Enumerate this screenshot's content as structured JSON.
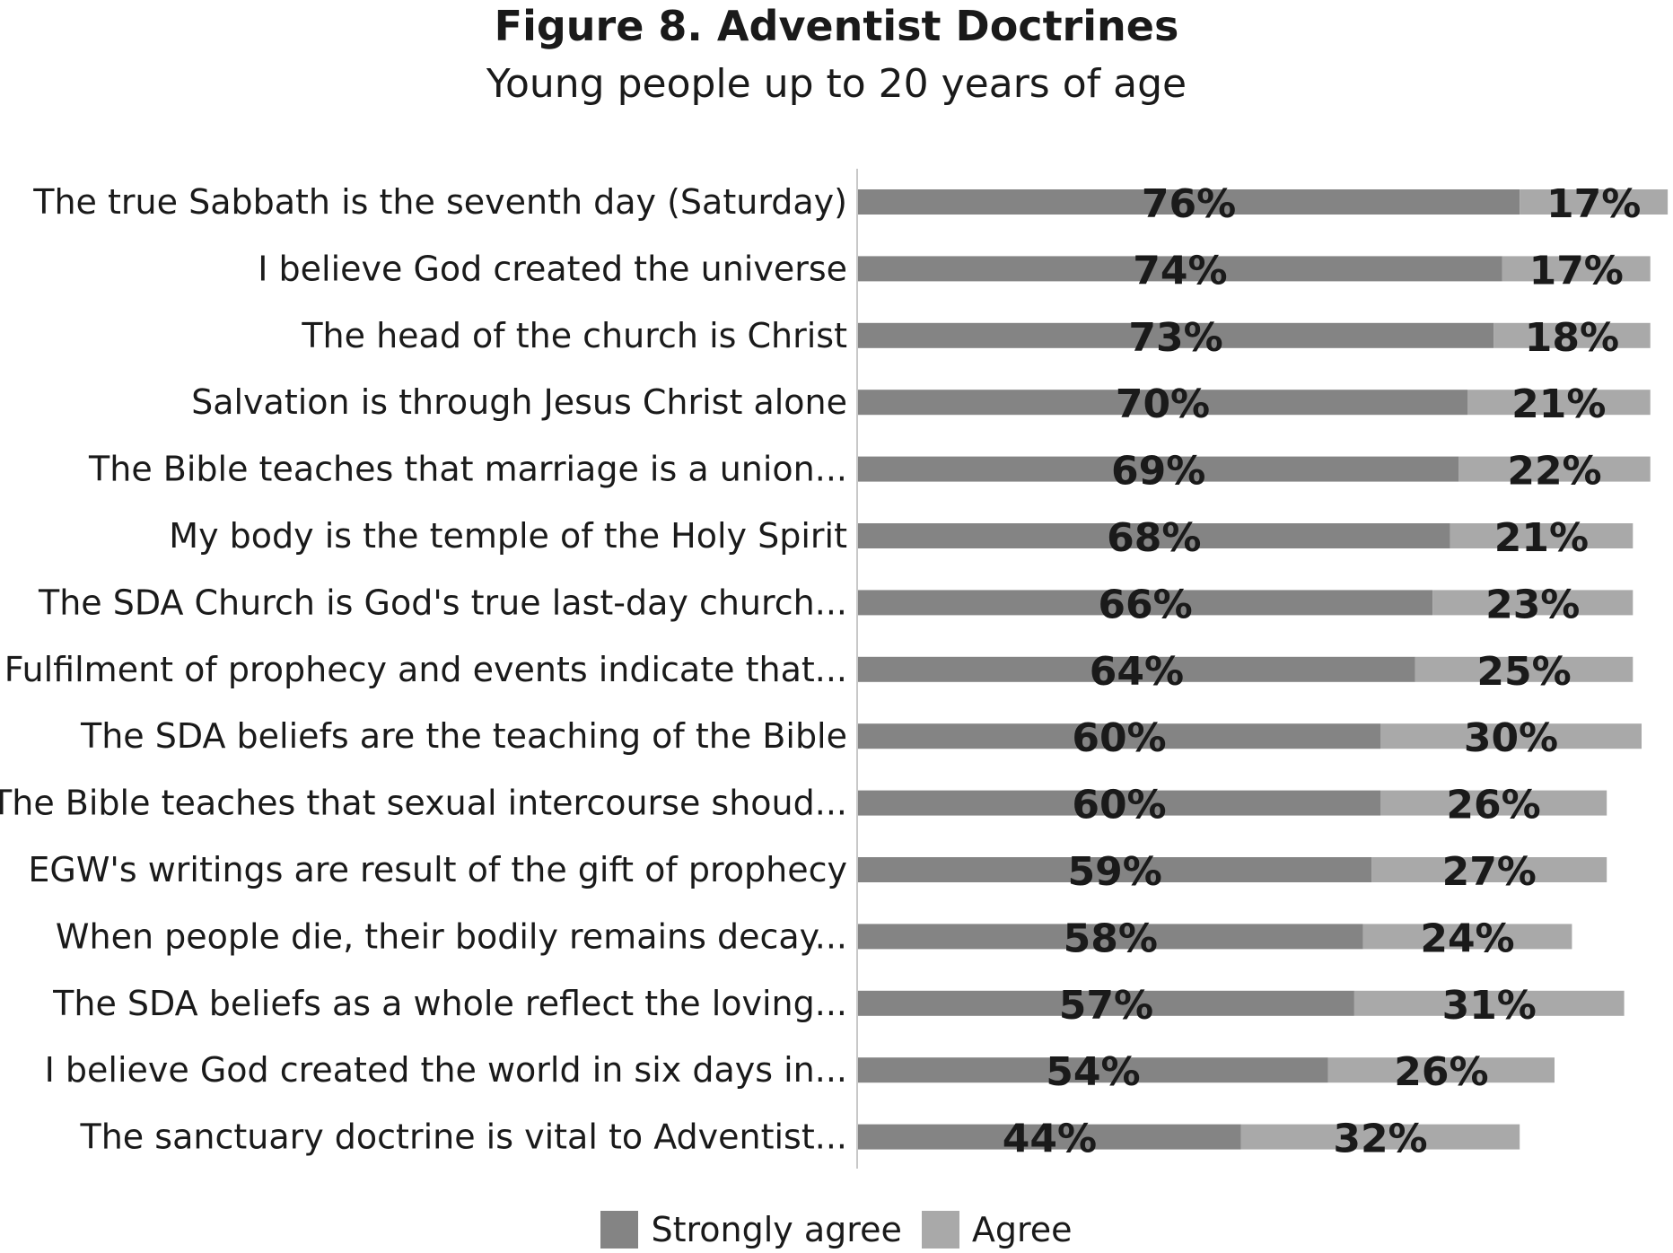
{
  "chart_data": {
    "type": "bar",
    "orientation": "horizontal",
    "stacked": true,
    "title": "Figure 8. Adventist Doctrines",
    "subtitle": "Young people up to 20 years of age",
    "categories": [
      "The true Sabbath is the seventh day (Saturday)",
      "I believe God created the universe",
      "The head of the church is Christ",
      "Salvation is through Jesus Christ alone",
      "The Bible teaches that marriage is a union...",
      "My body is the temple of the Holy Spirit",
      "The SDA Church is God's true last-day church...",
      "Fulfilment of prophecy and events indicate that...",
      "The SDA beliefs are the teaching of the Bible",
      "The Bible teaches that sexual intercourse shoud...",
      "EGW's writings are result of the gift of prophecy",
      "When people die, their bodily remains decay...",
      "The SDA beliefs  as a whole reflect the loving...",
      "I believe God created the world in six days in...",
      "The sanctuary doctrine is vital to Adventist..."
    ],
    "series": [
      {
        "name": "Strongly agree",
        "color": "#848484",
        "values": [
          76,
          74,
          73,
          70,
          69,
          68,
          66,
          64,
          60,
          60,
          59,
          58,
          57,
          54,
          44
        ],
        "labels": [
          "76%",
          "74%",
          "73%",
          "70%",
          "69%",
          "68%",
          "66%",
          "64%",
          "60%",
          "60%",
          "59%",
          "58%",
          "57%",
          "54%",
          "44%"
        ]
      },
      {
        "name": "Agree",
        "color": "#a9a9a9",
        "values": [
          17,
          17,
          18,
          21,
          22,
          21,
          23,
          25,
          30,
          26,
          27,
          24,
          31,
          26,
          32
        ],
        "labels": [
          "17%",
          "17%",
          "18%",
          "21%",
          "22%",
          "21%",
          "23%",
          "25%",
          "30%",
          "26%",
          "27%",
          "24%",
          "31%",
          "26%",
          "32%"
        ]
      }
    ],
    "xlim": [
      0,
      100
    ],
    "grid": false,
    "legend_position": "bottom"
  }
}
